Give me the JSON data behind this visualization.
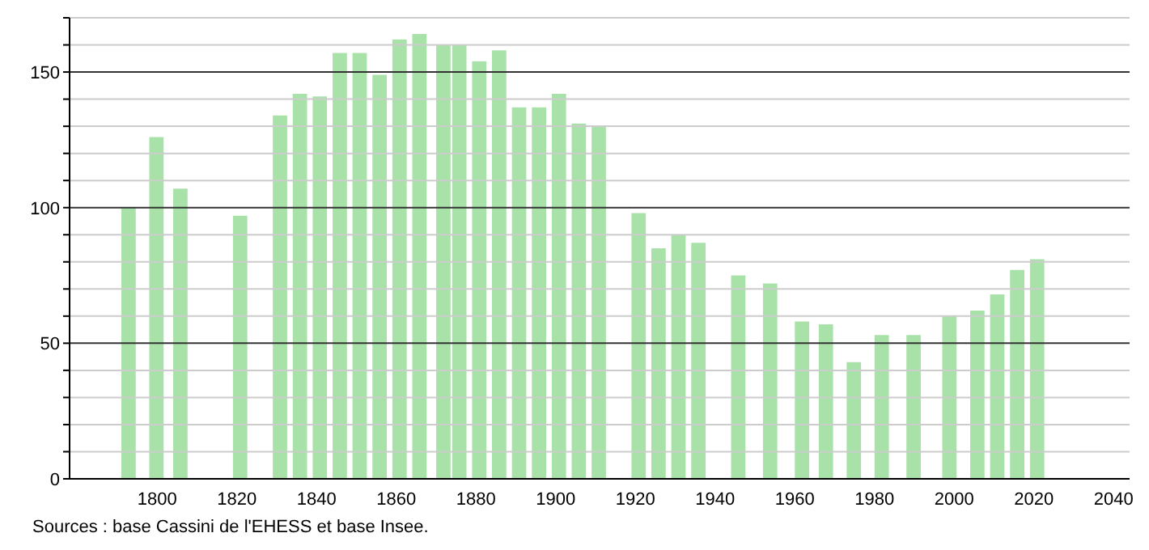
{
  "chart_data": {
    "type": "bar",
    "x": [
      1793,
      1800,
      1806,
      1821,
      1831,
      1836,
      1841,
      1846,
      1851,
      1856,
      1861,
      1866,
      1872,
      1876,
      1881,
      1886,
      1891,
      1896,
      1901,
      1906,
      1911,
      1921,
      1926,
      1931,
      1936,
      1946,
      1954,
      1962,
      1968,
      1975,
      1982,
      1990,
      1999,
      2006,
      2011,
      2016,
      2021
    ],
    "values": [
      100,
      126,
      107,
      97,
      134,
      142,
      141,
      157,
      157,
      149,
      162,
      164,
      160,
      160,
      154,
      158,
      137,
      137,
      142,
      131,
      130,
      98,
      85,
      90,
      87,
      75,
      72,
      58,
      57,
      43,
      53,
      53,
      60,
      62,
      68,
      77,
      81
    ],
    "color": "#a8e2a8",
    "xlim": [
      1778,
      2044
    ],
    "xticks": [
      1800,
      1820,
      1840,
      1860,
      1880,
      1900,
      1920,
      1940,
      1960,
      1980,
      2000,
      2020,
      2040
    ],
    "ylim": [
      0,
      170
    ],
    "yticks": [
      0,
      {
        "value": 10,
        "label": null
      },
      {
        "value": 20,
        "label": null
      },
      {
        "value": 30,
        "label": null
      },
      {
        "value": 40,
        "label": null
      },
      50,
      {
        "value": 60,
        "label": null
      },
      {
        "value": 70,
        "label": null
      },
      {
        "value": 80,
        "label": null
      },
      {
        "value": 90,
        "label": null
      },
      100,
      {
        "value": 110,
        "label": null
      },
      {
        "value": 120,
        "label": null
      },
      {
        "value": 130,
        "label": null
      },
      {
        "value": 140,
        "label": null
      },
      150,
      {
        "value": 160,
        "label": null
      },
      {
        "value": 170,
        "label": null
      }
    ],
    "grid": "y",
    "annotations": [
      "Sources : base Cassini de l'EHESS et base Insee."
    ]
  }
}
